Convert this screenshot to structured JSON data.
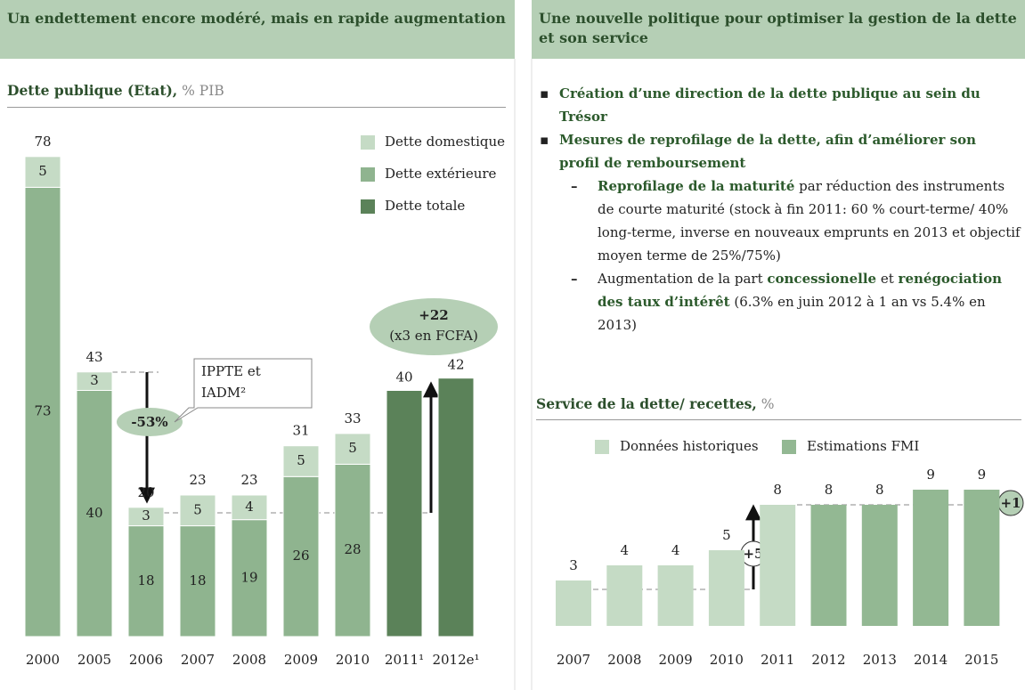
{
  "left_panel": {
    "heading": "Un endettement encore modéré, mais en rapide augmentation"
  },
  "right_panel": {
    "heading": "Une nouvelle politique pour optimiser la gestion de la dette et son service",
    "bullets": [
      {
        "text": "Création d’une direction de la dette publique au sein du Trésor"
      },
      {
        "text": "Mesures de reprofilage de la dette, afin d’améliorer son profil de remboursement",
        "sub": [
          {
            "parts": [
              {
                "text": "Reprofilage de la maturité",
                "em": true
              },
              {
                "text": " par réduction des instruments de courte maturité (stock à fin 2011: 60 % court-terme/ 40% long-terme, inverse en nouveaux emprunts en 2013 et objectif moyen terme de 25%/75%)"
              }
            ]
          },
          {
            "parts": [
              {
                "text": "Augmentation de la part "
              },
              {
                "text": "concessionelle",
                "em": true
              },
              {
                "text": " et "
              },
              {
                "text": "renégociation des taux d’intérêt",
                "em": true
              },
              {
                "text": " (6.3% en juin 2012 à 1 an vs 5.4% en 2013)"
              }
            ]
          }
        ]
      }
    ]
  },
  "chart_data": [
    {
      "type": "stacked_bar",
      "title": "Dette publique (Etat),",
      "unit": "% PIB",
      "categories": [
        "2000",
        "2005",
        "2006",
        "2007",
        "2008",
        "2009",
        "2010",
        "2011¹",
        "2012e¹"
      ],
      "series": [
        {
          "name": "Dette domestique",
          "color": "#c5dbc5",
          "values": [
            5,
            3,
            3,
            5,
            4,
            5,
            5,
            null,
            null
          ]
        },
        {
          "name": "Dette extérieure",
          "color": "#8fb48f",
          "values": [
            73,
            40,
            18,
            18,
            19,
            26,
            28,
            null,
            null
          ]
        },
        {
          "name": "Dette totale",
          "color": "#5b8259",
          "values": [
            null,
            null,
            null,
            null,
            null,
            null,
            null,
            40,
            42
          ]
        }
      ],
      "totals": [
        78,
        43,
        20,
        23,
        23,
        31,
        33,
        null,
        null
      ],
      "ylim": [
        0,
        80
      ],
      "legend": "top-right",
      "annotations": [
        "-53%",
        "IPPTE et IADM²",
        "+22",
        "(x3 en FCFA)"
      ]
    },
    {
      "type": "bar",
      "title": "Service de la dette/ recettes,",
      "unit": "%",
      "categories": [
        "2007",
        "2008",
        "2009",
        "2010",
        "2011",
        "2012",
        "2013",
        "2014",
        "2015"
      ],
      "series": [
        {
          "name": "Données historiques",
          "color": "#c5dbc5",
          "values": [
            3,
            4,
            4,
            5,
            8,
            null,
            null,
            null,
            null
          ]
        },
        {
          "name": "Estimations FMI",
          "color": "#93b893",
          "values": [
            null,
            null,
            null,
            null,
            null,
            8,
            8,
            9,
            9
          ]
        }
      ],
      "ylim": [
        0,
        10
      ],
      "legend": "top",
      "annotations": [
        "+5",
        "+1"
      ]
    }
  ]
}
